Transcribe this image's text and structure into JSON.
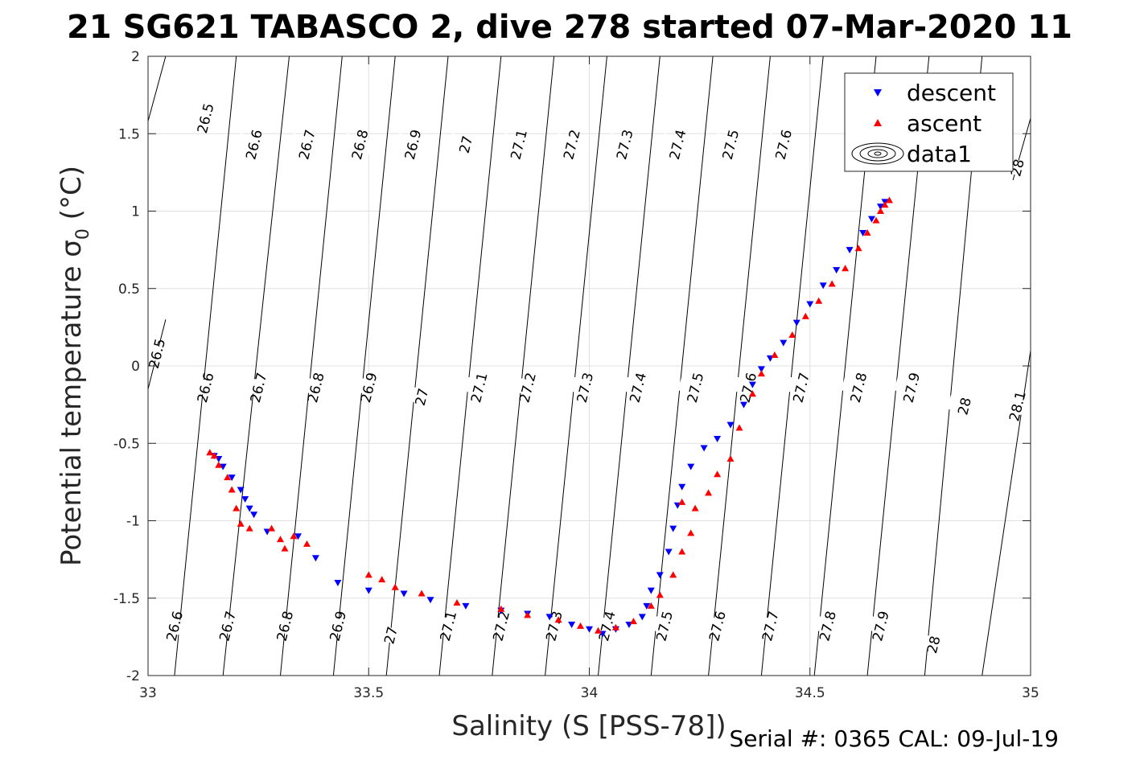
{
  "chart_data": {
    "type": "scatter",
    "title": "21 SG621 TABASCO 2, dive 278 started 07-Mar-2020 11",
    "xlabel": "Salinity (S [PSS-78])",
    "ylabel_main": "Potential temperature",
    "ylabel_sigma": "σ",
    "ylabel_sub": "0",
    "ylabel_unit": "(°C)",
    "xlim": [
      33,
      35
    ],
    "ylim": [
      -2,
      2
    ],
    "x_ticks": [
      33,
      33.5,
      34,
      34.5,
      35
    ],
    "x_tick_labels": [
      "33",
      "33.5",
      "34",
      "34.5",
      "35"
    ],
    "y_ticks": [
      -2,
      -1.5,
      -1,
      -0.5,
      0,
      0.5,
      1,
      1.5,
      2
    ],
    "y_tick_labels": [
      "-2",
      "-1.5",
      "-1",
      "-0.5",
      "0",
      "0.5",
      "1",
      "1.5",
      "2"
    ],
    "grid": true,
    "legend_position": "top-right",
    "density_contours": [
      {
        "level": 26.5,
        "label": "26.5",
        "points": [
          [
            33.0,
            1.58
          ],
          [
            33.04,
            2.0
          ]
        ]
      },
      {
        "level": 26.5,
        "label": "26.5",
        "points": [
          [
            33.0,
            -0.15
          ],
          [
            33.04,
            0.3
          ]
        ]
      },
      {
        "level": 26.6,
        "label": "26.6",
        "points": [
          [
            33.06,
            -2.0
          ],
          [
            33.2,
            2.0
          ]
        ]
      },
      {
        "level": 26.7,
        "label": "26.7",
        "points": [
          [
            33.17,
            -2.0
          ],
          [
            33.32,
            2.0
          ]
        ]
      },
      {
        "level": 26.8,
        "label": "26.8",
        "points": [
          [
            33.3,
            -2.0
          ],
          [
            33.44,
            2.0
          ]
        ]
      },
      {
        "level": 26.9,
        "label": "26.9",
        "points": [
          [
            33.42,
            -2.0
          ],
          [
            33.56,
            2.0
          ]
        ]
      },
      {
        "level": 27.0,
        "label": "27",
        "points": [
          [
            33.54,
            -2.0
          ],
          [
            33.68,
            2.0
          ]
        ]
      },
      {
        "level": 27.1,
        "label": "27.1",
        "points": [
          [
            33.66,
            -2.0
          ],
          [
            33.8,
            2.0
          ]
        ]
      },
      {
        "level": 27.2,
        "label": "27.2",
        "points": [
          [
            33.78,
            -2.0
          ],
          [
            33.92,
            2.0
          ]
        ]
      },
      {
        "level": 27.3,
        "label": "27.3",
        "points": [
          [
            33.9,
            -2.0
          ],
          [
            34.04,
            2.0
          ]
        ]
      },
      {
        "level": 27.4,
        "label": "27.4",
        "points": [
          [
            34.02,
            -2.0
          ],
          [
            34.16,
            2.0
          ]
        ]
      },
      {
        "level": 27.5,
        "label": "27.5",
        "points": [
          [
            34.14,
            -2.0
          ],
          [
            34.28,
            2.0
          ]
        ]
      },
      {
        "level": 27.6,
        "label": "27.6",
        "points": [
          [
            34.27,
            -2.0
          ],
          [
            34.41,
            2.0
          ]
        ]
      },
      {
        "level": 27.7,
        "label": "27.7",
        "points": [
          [
            34.39,
            -2.0
          ],
          [
            34.53,
            2.0
          ]
        ]
      },
      {
        "level": 27.8,
        "label": "27.8",
        "points": [
          [
            34.51,
            -2.0
          ],
          [
            34.65,
            2.0
          ]
        ]
      },
      {
        "level": 27.9,
        "label": "27.9",
        "points": [
          [
            34.63,
            -2.0
          ],
          [
            34.77,
            2.0
          ]
        ]
      },
      {
        "level": 28.0,
        "label": "28",
        "points": [
          [
            34.76,
            -2.0
          ],
          [
            34.89,
            2.0
          ]
        ]
      },
      {
        "level": 28.1,
        "label": "28.1",
        "points": [
          [
            34.89,
            -2.0
          ],
          [
            35.0,
            0.1
          ]
        ]
      },
      {
        "level": 28.0,
        "label": "28",
        "points": [
          [
            34.96,
            1.2
          ],
          [
            35.0,
            1.6
          ]
        ]
      }
    ],
    "contour_labels": [
      {
        "text": "26.5",
        "x": 33.13,
        "y": 1.6
      },
      {
        "text": "26.6",
        "x": 33.24,
        "y": 1.43
      },
      {
        "text": "26.7",
        "x": 33.36,
        "y": 1.43
      },
      {
        "text": "26.8",
        "x": 33.48,
        "y": 1.43
      },
      {
        "text": "26.9",
        "x": 33.6,
        "y": 1.43
      },
      {
        "text": "27",
        "x": 33.72,
        "y": 1.43
      },
      {
        "text": "27.1",
        "x": 33.84,
        "y": 1.43
      },
      {
        "text": "27.2",
        "x": 33.96,
        "y": 1.43
      },
      {
        "text": "27.3",
        "x": 34.08,
        "y": 1.43
      },
      {
        "text": "27.4",
        "x": 34.2,
        "y": 1.43
      },
      {
        "text": "27.5",
        "x": 34.32,
        "y": 1.43
      },
      {
        "text": "27.6",
        "x": 34.44,
        "y": 1.43
      },
      {
        "text": "28",
        "x": 34.97,
        "y": 1.28
      },
      {
        "text": "26.5",
        "x": 33.02,
        "y": 0.08
      },
      {
        "text": "26.6",
        "x": 33.13,
        "y": -0.14
      },
      {
        "text": "26.7",
        "x": 33.25,
        "y": -0.14
      },
      {
        "text": "26.8",
        "x": 33.38,
        "y": -0.14
      },
      {
        "text": "26.9",
        "x": 33.5,
        "y": -0.14
      },
      {
        "text": "27",
        "x": 33.62,
        "y": -0.2
      },
      {
        "text": "27.1",
        "x": 33.75,
        "y": -0.14
      },
      {
        "text": "27.2",
        "x": 33.86,
        "y": -0.14
      },
      {
        "text": "27.3",
        "x": 33.99,
        "y": -0.14
      },
      {
        "text": "27.4",
        "x": 34.11,
        "y": -0.14
      },
      {
        "text": "27.5",
        "x": 34.24,
        "y": -0.14
      },
      {
        "text": "27.6",
        "x": 34.36,
        "y": -0.14
      },
      {
        "text": "27.7",
        "x": 34.48,
        "y": -0.14
      },
      {
        "text": "27.8",
        "x": 34.61,
        "y": -0.14
      },
      {
        "text": "27.9",
        "x": 34.73,
        "y": -0.14
      },
      {
        "text": "28",
        "x": 34.85,
        "y": -0.26
      },
      {
        "text": "28.1",
        "x": 34.97,
        "y": -0.26
      },
      {
        "text": "26.6",
        "x": 33.06,
        "y": -1.68
      },
      {
        "text": "26.7",
        "x": 33.18,
        "y": -1.68
      },
      {
        "text": "26.8",
        "x": 33.31,
        "y": -1.68
      },
      {
        "text": "26.9",
        "x": 33.43,
        "y": -1.68
      },
      {
        "text": "27",
        "x": 33.55,
        "y": -1.74
      },
      {
        "text": "27.1",
        "x": 33.68,
        "y": -1.68
      },
      {
        "text": "27.2",
        "x": 33.8,
        "y": -1.68
      },
      {
        "text": "27.3",
        "x": 33.92,
        "y": -1.68
      },
      {
        "text": "27.4",
        "x": 34.04,
        "y": -1.68
      },
      {
        "text": "27.5",
        "x": 34.17,
        "y": -1.68
      },
      {
        "text": "27.6",
        "x": 34.29,
        "y": -1.68
      },
      {
        "text": "27.7",
        "x": 34.41,
        "y": -1.68
      },
      {
        "text": "27.8",
        "x": 34.54,
        "y": -1.68
      },
      {
        "text": "27.9",
        "x": 34.66,
        "y": -1.68
      },
      {
        "text": "28",
        "x": 34.78,
        "y": -1.8
      }
    ],
    "series": [
      {
        "name": "descent",
        "marker": "triangle-down",
        "color": "#0000ff",
        "points": [
          [
            33.15,
            -0.58
          ],
          [
            33.16,
            -0.6
          ],
          [
            33.17,
            -0.65
          ],
          [
            33.19,
            -0.72
          ],
          [
            33.21,
            -0.8
          ],
          [
            33.22,
            -0.86
          ],
          [
            33.23,
            -0.92
          ],
          [
            33.24,
            -0.96
          ],
          [
            33.27,
            -1.07
          ],
          [
            33.34,
            -1.1
          ],
          [
            33.38,
            -1.24
          ],
          [
            33.43,
            -1.4
          ],
          [
            33.5,
            -1.45
          ],
          [
            33.58,
            -1.47
          ],
          [
            33.64,
            -1.51
          ],
          [
            33.72,
            -1.55
          ],
          [
            33.8,
            -1.58
          ],
          [
            33.86,
            -1.6
          ],
          [
            33.91,
            -1.62
          ],
          [
            33.96,
            -1.67
          ],
          [
            34.0,
            -1.7
          ],
          [
            34.03,
            -1.73
          ],
          [
            34.06,
            -1.7
          ],
          [
            34.09,
            -1.67
          ],
          [
            34.12,
            -1.62
          ],
          [
            34.13,
            -1.55
          ],
          [
            34.14,
            -1.45
          ],
          [
            34.16,
            -1.35
          ],
          [
            34.18,
            -1.2
          ],
          [
            34.19,
            -1.05
          ],
          [
            34.2,
            -0.9
          ],
          [
            34.21,
            -0.78
          ],
          [
            34.23,
            -0.65
          ],
          [
            34.26,
            -0.53
          ],
          [
            34.29,
            -0.47
          ],
          [
            34.32,
            -0.38
          ],
          [
            34.35,
            -0.25
          ],
          [
            34.37,
            -0.12
          ],
          [
            34.39,
            -0.02
          ],
          [
            34.41,
            0.05
          ],
          [
            34.44,
            0.15
          ],
          [
            34.47,
            0.28
          ],
          [
            34.5,
            0.4
          ],
          [
            34.53,
            0.52
          ],
          [
            34.56,
            0.62
          ],
          [
            34.59,
            0.75
          ],
          [
            34.62,
            0.86
          ],
          [
            34.64,
            0.95
          ],
          [
            34.66,
            1.03
          ],
          [
            34.67,
            1.06
          ]
        ]
      },
      {
        "name": "ascent",
        "marker": "triangle-up",
        "color": "#ff0000",
        "points": [
          [
            33.14,
            -0.56
          ],
          [
            33.15,
            -0.58
          ],
          [
            33.16,
            -0.64
          ],
          [
            33.18,
            -0.72
          ],
          [
            33.19,
            -0.8
          ],
          [
            33.2,
            -0.92
          ],
          [
            33.21,
            -1.02
          ],
          [
            33.23,
            -1.05
          ],
          [
            33.28,
            -1.05
          ],
          [
            33.3,
            -1.12
          ],
          [
            33.31,
            -1.18
          ],
          [
            33.33,
            -1.1
          ],
          [
            33.36,
            -1.15
          ],
          [
            33.5,
            -1.35
          ],
          [
            33.53,
            -1.38
          ],
          [
            33.56,
            -1.43
          ],
          [
            33.62,
            -1.47
          ],
          [
            33.7,
            -1.53
          ],
          [
            33.8,
            -1.57
          ],
          [
            33.86,
            -1.61
          ],
          [
            33.93,
            -1.64
          ],
          [
            33.98,
            -1.68
          ],
          [
            34.02,
            -1.71
          ],
          [
            34.06,
            -1.69
          ],
          [
            34.1,
            -1.65
          ],
          [
            34.14,
            -1.55
          ],
          [
            34.16,
            -1.48
          ],
          [
            34.19,
            -1.35
          ],
          [
            34.21,
            -1.2
          ],
          [
            34.23,
            -1.08
          ],
          [
            34.21,
            -0.88
          ],
          [
            34.24,
            -0.92
          ],
          [
            34.27,
            -0.82
          ],
          [
            34.29,
            -0.7
          ],
          [
            34.32,
            -0.6
          ],
          [
            34.34,
            -0.4
          ],
          [
            34.37,
            -0.18
          ],
          [
            34.39,
            -0.05
          ],
          [
            34.42,
            0.07
          ],
          [
            34.46,
            0.2
          ],
          [
            34.49,
            0.32
          ],
          [
            34.52,
            0.42
          ],
          [
            34.55,
            0.53
          ],
          [
            34.58,
            0.63
          ],
          [
            34.61,
            0.76
          ],
          [
            34.63,
            0.86
          ],
          [
            34.65,
            0.94
          ],
          [
            34.66,
            1.0
          ],
          [
            34.67,
            1.04
          ],
          [
            34.68,
            1.07
          ]
        ]
      }
    ],
    "legend": [
      {
        "label": "descent",
        "marker": "triangle-down",
        "color": "#0000ff"
      },
      {
        "label": "ascent",
        "marker": "triangle-up",
        "color": "#ff0000"
      },
      {
        "label": "data1",
        "marker": "contour-ellipses",
        "color": "#000000"
      }
    ],
    "annotation": "Serial #: 0365  CAL: 09-Jul-19"
  }
}
